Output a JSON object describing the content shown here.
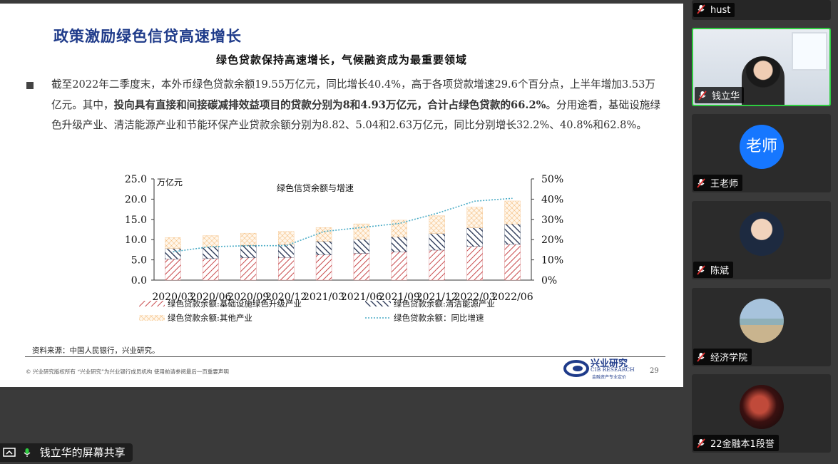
{
  "slide": {
    "title": "政策激励绿色信贷高速增长",
    "subtitle": "绿色贷款保持高速增长，气候融资成为最重要领域",
    "paragraph": [
      {
        "text": "截至2022年二季度末，本外币绿色贷款余额19.55万亿元，同比增长40.4%，高于各项贷款增速29.6个百分点，上半年增加3.53万亿元。其中，",
        "bold": false
      },
      {
        "text": "投向具有直接和间接碳减排效益项目的贷款分别为8和4.93万亿元，合计占绿色贷款的66.2%",
        "bold": true
      },
      {
        "text": "。分用途看，基础设施绿色升级产业、清洁能源产业和节能环保产业贷款余额分别为8.82、5.04和2.63万亿元，同比分别增长32.2%、40.8%和62.8%。",
        "bold": false
      }
    ],
    "source": "资料来源：中国人民银行，兴业研究。",
    "footer": "© 兴业研究版权所有   “兴业研究”为兴业银行成员机构   使用前请参阅最后一页重要声明",
    "logo_cn": "兴业研究",
    "logo_en": "CIB RESEARCH",
    "logo_tagline": "金融资产专业定价",
    "page_number": "29"
  },
  "chart_data": {
    "type": "bar",
    "stacked": true,
    "title": "绿色信贷余额与增速",
    "y_label": "万亿元",
    "categories": [
      "2020/03",
      "2020/06",
      "2020/09",
      "2020/12",
      "2021/03",
      "2021/06",
      "2021/09",
      "2021/12",
      "2022/03",
      "2022/06"
    ],
    "series": [
      {
        "name": "绿色贷款余额:基础设施绿色升级产业",
        "color": "#c8494b",
        "pattern": "diagonal",
        "values": [
          5.2,
          5.3,
          5.5,
          5.6,
          6.2,
          6.6,
          7.0,
          7.4,
          8.3,
          8.82
        ]
      },
      {
        "name": "绿色贷款余额:清洁能源产业",
        "color": "#1f2d4d",
        "pattern": "reverse-diagonal",
        "values": [
          2.6,
          2.9,
          3.1,
          3.2,
          3.4,
          3.5,
          3.7,
          4.1,
          4.6,
          5.04
        ]
      },
      {
        "name": "绿色贷款余额:其他产业",
        "color": "#f2b570",
        "pattern": "crosshatch",
        "values": [
          2.7,
          2.8,
          3.0,
          3.2,
          3.4,
          3.8,
          4.1,
          4.4,
          5.1,
          5.69
        ]
      },
      {
        "name": "绿色贷款余额：同比增速",
        "color": "#4bacc6",
        "type": "line",
        "axis": "y2",
        "values": [
          14,
          16.5,
          17,
          17,
          24,
          26,
          28,
          33,
          39,
          40.4
        ]
      }
    ],
    "ylim": [
      0,
      25
    ],
    "yticks": [
      {
        "value": 0,
        "label": "0.0"
      },
      {
        "value": 5,
        "label": "5.0"
      },
      {
        "value": 10,
        "label": "10.0"
      },
      {
        "value": 15,
        "label": "15.0"
      },
      {
        "value": 20,
        "label": "20.0"
      },
      {
        "value": 25,
        "label": "25.0"
      }
    ],
    "y2lim": [
      0,
      50
    ],
    "y2ticks": [
      {
        "value": 0,
        "label": "0%"
      },
      {
        "value": 10,
        "label": "10%"
      },
      {
        "value": 20,
        "label": "20%"
      },
      {
        "value": 30,
        "label": "30%"
      },
      {
        "value": 40,
        "label": "40%"
      },
      {
        "value": 50,
        "label": "50%"
      }
    ],
    "grid": false
  },
  "participants": [
    {
      "name": "hust",
      "kind": "bar"
    },
    {
      "name": "钱立华",
      "kind": "video"
    },
    {
      "name": "王老师",
      "kind": "avatar",
      "avatar_text": "老师"
    },
    {
      "name": "陈斌",
      "kind": "photo"
    },
    {
      "name": "经济学院",
      "kind": "photo"
    },
    {
      "name": "22金融本1段誉",
      "kind": "photo"
    }
  ],
  "share_label": "钱立华的屏幕共享"
}
